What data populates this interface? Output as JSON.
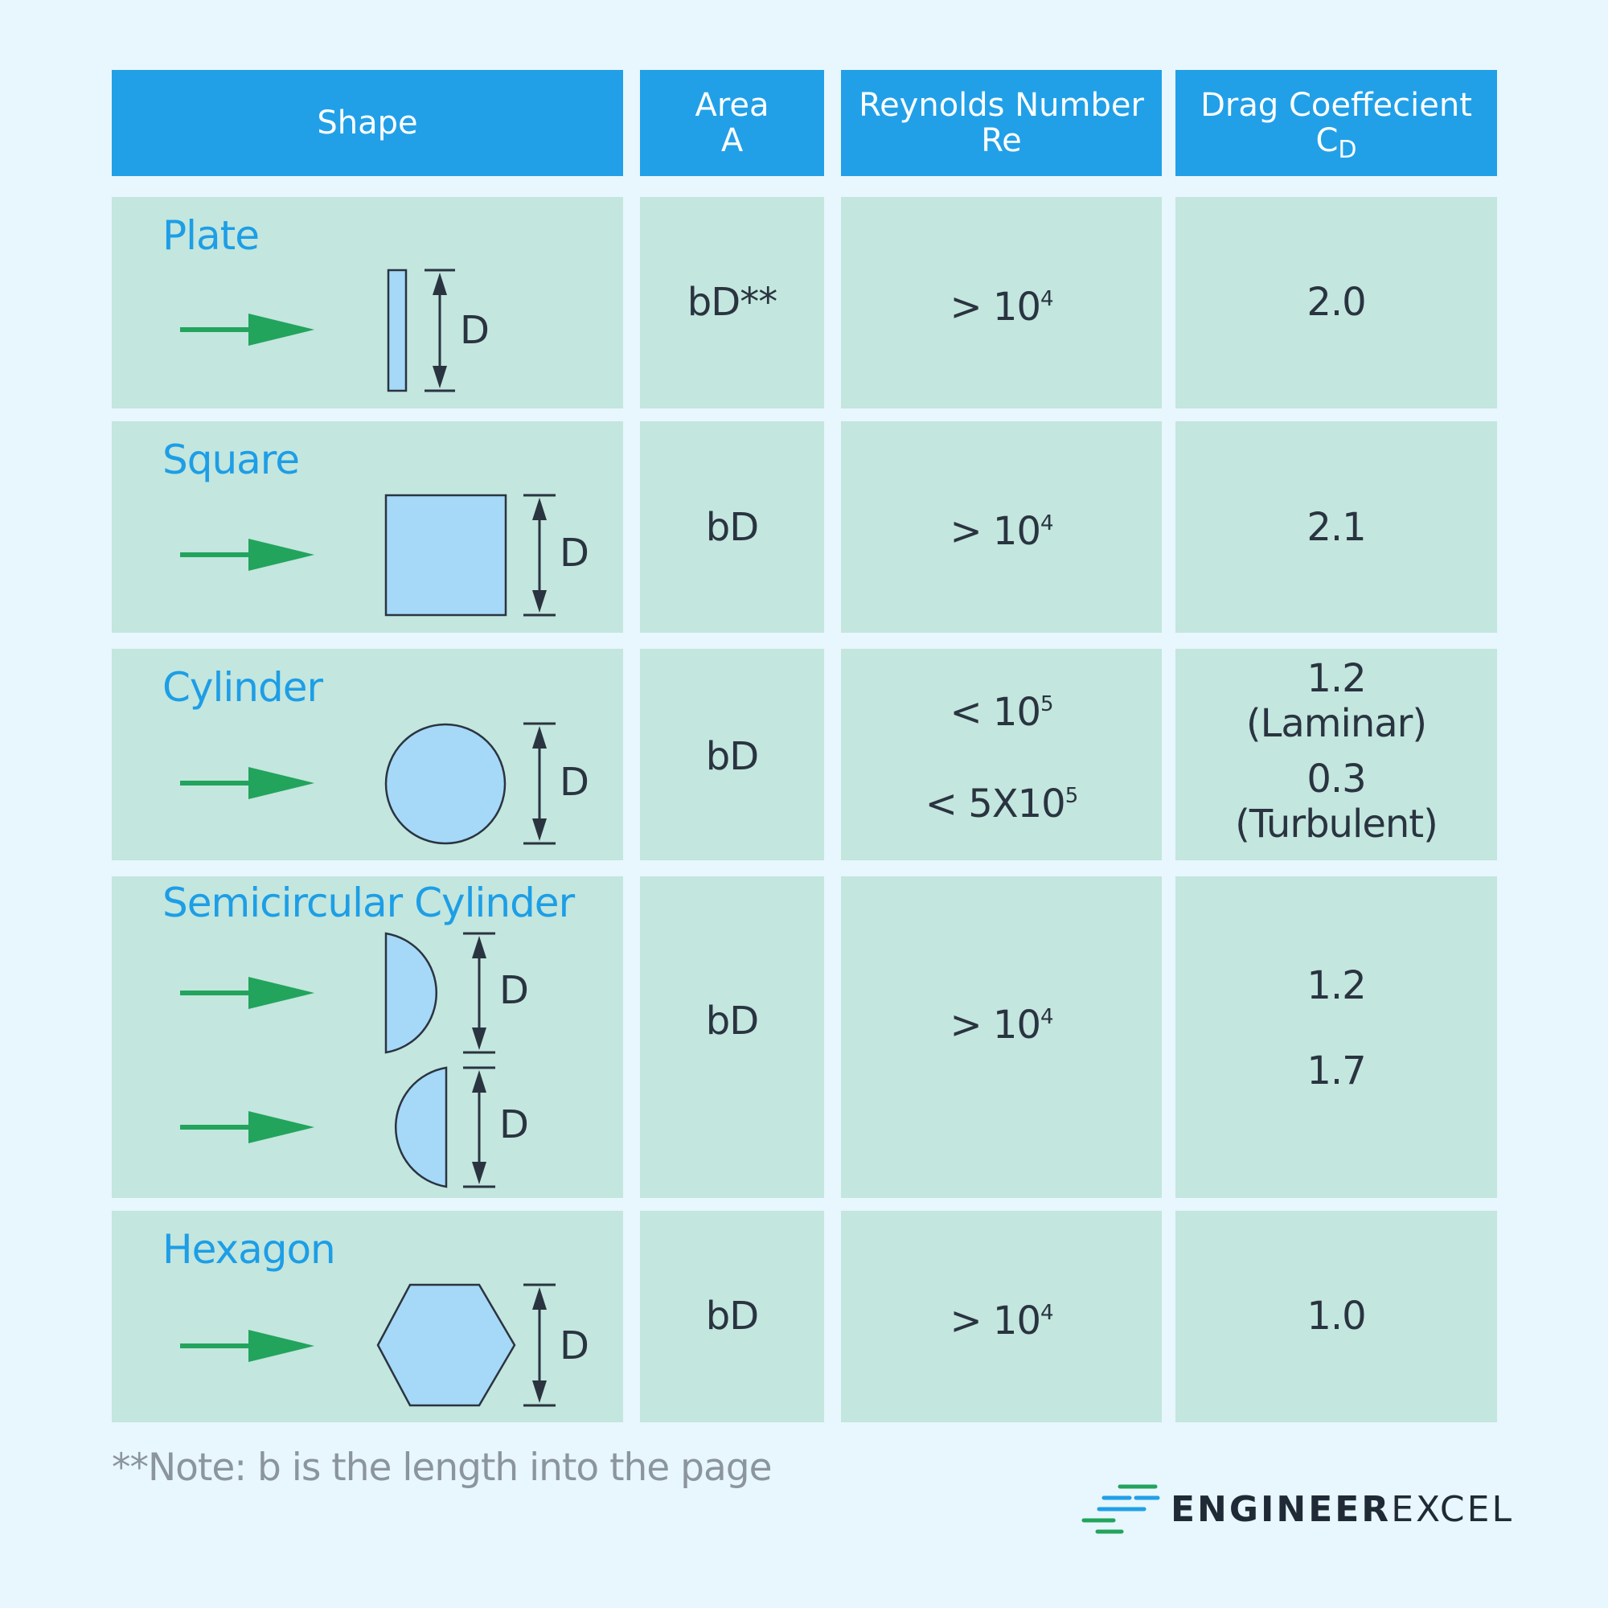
{
  "header": {
    "shape": "Shape",
    "area_line1": "Area",
    "area_line2": "A",
    "re_line1": "Reynolds Number",
    "re_line2": "Re",
    "cd_line1": "Drag Coeffecient",
    "cd_main": "C",
    "cd_sub": "D"
  },
  "rows": [
    {
      "shape": "Plate",
      "dim_label": "D",
      "area": "bD**",
      "re": [
        {
          "prefix": "> 10",
          "exp": "4"
        }
      ],
      "cd": [
        "2.0"
      ]
    },
    {
      "shape": "Square",
      "dim_label": "D",
      "area": "bD",
      "re": [
        {
          "prefix": "> 10",
          "exp": "4"
        }
      ],
      "cd": [
        "2.1"
      ]
    },
    {
      "shape": "Cylinder",
      "dim_label": "D",
      "area": "bD",
      "re": [
        {
          "prefix": "< 10",
          "exp": "5"
        },
        {
          "prefix": "< 5X10",
          "exp": "5"
        }
      ],
      "cd": [
        "1.2",
        "(Laminar)",
        "0.3",
        "(Turbulent)"
      ]
    },
    {
      "shape": "Semicircular Cylinder",
      "dim_label": "D",
      "dim_label_2": "D",
      "area": "bD",
      "re": [
        {
          "prefix": "> 10",
          "exp": "4"
        }
      ],
      "cd": [
        "1.2",
        "1.7"
      ]
    },
    {
      "shape": "Hexagon",
      "dim_label": "D",
      "area": "bD",
      "re": [
        {
          "prefix": "> 10",
          "exp": "4"
        }
      ],
      "cd": [
        "1.0"
      ]
    }
  ],
  "note": "**Note: b is the length into the page",
  "brand": {
    "name_bold": "ENGINEER",
    "name_light": "EXCEL"
  },
  "colors": {
    "header_bg": "#21a0e8",
    "cell_bg": "#c3e6de",
    "page_bg": "#e8f6fd",
    "shape_fill": "#a6d8f8",
    "arrow": "#22a45d",
    "shape_title": "#1d9ee6",
    "text_dark": "#2a3440"
  },
  "icons": [
    "flow-arrow-icon",
    "dimension-arrow-icon",
    "engineerexcel-logo-icon"
  ]
}
